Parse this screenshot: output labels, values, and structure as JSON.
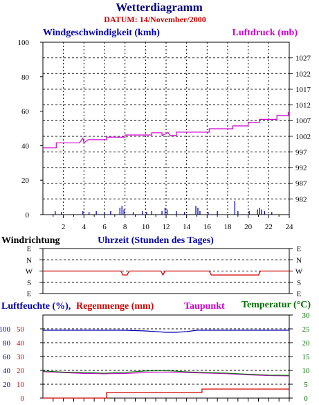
{
  "header": {
    "title": "Wetterdiagramm",
    "date_label": "DATUM: 14/November/2000"
  },
  "colors": {
    "wind": "#0000b0",
    "pressure": "#d000d0",
    "direction": "#d00000",
    "humidity": "#0000b0",
    "rain": "#d00000",
    "dewpoint": "#d000d0",
    "temperature": "#007000",
    "grid": "#000000"
  },
  "chart_data": [
    {
      "type": "line",
      "id": "wind_pressure",
      "ylabel": "Windgeschwindigkeit (kmh)",
      "y2label": "Luftdruck (mb)",
      "xlabel": "Uhrzeit (Stunden des Tages)",
      "xlim": [
        0,
        24
      ],
      "ylim": [
        0,
        100
      ],
      "y2lim": [
        977,
        1032
      ],
      "xticks": [
        2,
        4,
        6,
        8,
        10,
        12,
        14,
        16,
        18,
        20,
        22,
        24
      ],
      "yticks": [
        0,
        20,
        40,
        60,
        80,
        100
      ],
      "y2ticks": [
        982,
        987,
        992,
        997,
        1002,
        1007,
        1012,
        1017,
        1022,
        1027
      ],
      "grid": true,
      "series": [
        {
          "name": "Luftdruck (mb)",
          "axis": "right",
          "x": [
            0,
            1.3,
            1.3,
            3.6,
            3.6,
            3.9,
            4.0,
            4.4,
            4.4,
            6.2,
            6.2,
            8.0,
            8.0,
            10.6,
            10.6,
            11.6,
            11.6,
            12.2,
            12.4,
            13.0,
            13.0,
            16.2,
            16.2,
            18.5,
            18.5,
            20.0,
            20.0,
            21.1,
            21.1,
            22.8,
            22.8,
            23.9,
            23.9,
            24
          ],
          "y": [
            998.3,
            998.3,
            999.9,
            999.9,
            1000.1,
            1001.4,
            999.9,
            1000.9,
            1000.9,
            1000.9,
            1001.7,
            1001.7,
            1002.4,
            1002.4,
            1003.1,
            1003.1,
            1002.2,
            1003.2,
            1002.2,
            1002.2,
            1003.3,
            1003.3,
            1004.4,
            1004.4,
            1005.3,
            1005.3,
            1006.4,
            1006.4,
            1007.4,
            1007.4,
            1008.6,
            1008.6,
            1009.6,
            1009.6
          ]
        },
        {
          "name": "Windgeschwindigkeit (kmh)",
          "axis": "left",
          "gusts_x": [
            1.2,
            1.8,
            3.9,
            4.5,
            5.2,
            6.0,
            6.6,
            7.5,
            7.7,
            7.9,
            8.8,
            9.7,
            10.1,
            10.6,
            11.6,
            11.9,
            12.1,
            13.0,
            13.8,
            14.9,
            15.1,
            15.3,
            16.1,
            17.0,
            18.7,
            19.0,
            20.1,
            20.9,
            21.1,
            21.3,
            21.6,
            22.3
          ],
          "gusts_y": [
            2,
            1.5,
            2,
            1.5,
            2,
            1.5,
            2,
            4,
            5,
            3,
            1.5,
            2,
            1.5,
            2,
            2,
            4,
            3,
            2,
            1.5,
            5,
            4,
            2,
            1.5,
            2,
            8,
            2,
            2,
            3,
            4,
            3,
            2,
            1.5
          ]
        }
      ]
    },
    {
      "type": "line",
      "id": "wind_direction",
      "ylabel": "Windrichtung",
      "xlim": [
        0,
        24
      ],
      "ytick_labels": [
        "E",
        "N",
        "W",
        "S",
        "E"
      ],
      "series": [
        {
          "name": "Windrichtung",
          "x": [
            0,
            7.6,
            7.8,
            8.2,
            8.4,
            8.9,
            11.5,
            11.7,
            11.9,
            12.3,
            12.5,
            16.2,
            16.4,
            21.0,
            21.2,
            24
          ],
          "y": [
            "W",
            "W",
            "W-S",
            "W-S",
            "W",
            "W",
            "W",
            "W-S",
            "W",
            "W",
            "W",
            "W",
            "W-S",
            "W-S",
            "W",
            "W"
          ]
        }
      ]
    },
    {
      "type": "line",
      "id": "humidity_rain_temp",
      "ylabel_blue": "Luftfeuchte (%),",
      "ylabel_red": "Regenmenge (mm)",
      "y3label": "Taupunkt",
      "y2label": "Temperatur (°C)",
      "xlim": [
        0,
        24
      ],
      "humidity_ticks": [
        "100",
        "80",
        "60",
        "40",
        "20"
      ],
      "rain_ticks": [
        "50",
        "40",
        "30",
        "20",
        "10",
        "0"
      ],
      "temp_ticks": [
        "30",
        "25",
        "20",
        "15",
        "10",
        "5",
        "0"
      ],
      "temp_lim": [
        0,
        30
      ],
      "series": [
        {
          "name": "Luftfeuchte (%)",
          "scale": "percent",
          "x": [
            0,
            6,
            8,
            10,
            11,
            12,
            13,
            14,
            15,
            17,
            20,
            24
          ],
          "y": [
            98,
            98,
            98,
            97,
            96,
            95,
            95,
            96,
            98,
            98,
            98,
            98
          ]
        },
        {
          "name": "Regenmenge (mm)",
          "x": [
            0,
            6.2,
            6.2,
            15.5,
            15.5,
            24
          ],
          "y": [
            0,
            0,
            4,
            4,
            6.5,
            6.5
          ]
        },
        {
          "name": "Taupunkt",
          "x": [
            0,
            2,
            4,
            6,
            8,
            10,
            12,
            14,
            16,
            18,
            20,
            22,
            24
          ],
          "y": [
            9.5,
            9.2,
            8.9,
            8.8,
            8.9,
            9.2,
            9.4,
            9.2,
            9.0,
            8.8,
            8.4,
            8.1,
            8.0
          ]
        },
        {
          "name": "Temperatur (°C)",
          "x": [
            0,
            2,
            4,
            6,
            8,
            10,
            12,
            14,
            16,
            18,
            20,
            22,
            24
          ],
          "y": [
            9.8,
            9.4,
            9.2,
            9.0,
            9.3,
            9.8,
            9.9,
            9.5,
            9.2,
            9.0,
            8.6,
            8.3,
            8.2
          ]
        }
      ]
    }
  ]
}
